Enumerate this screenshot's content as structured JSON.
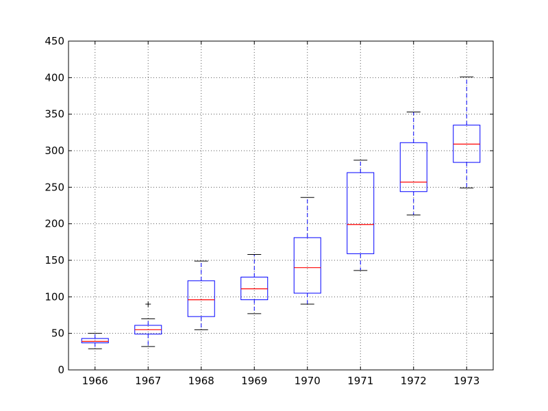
{
  "chart_data": {
    "type": "box",
    "title": "",
    "xlabel": "",
    "ylabel": "",
    "ylim": [
      0,
      450
    ],
    "yticks": [
      0,
      50,
      100,
      150,
      200,
      250,
      300,
      350,
      400,
      450
    ],
    "grid": true,
    "categories": [
      "1966",
      "1967",
      "1968",
      "1969",
      "1970",
      "1971",
      "1972",
      "1973"
    ],
    "boxes": [
      {
        "label": "1966",
        "whislo": 29,
        "q1": 37,
        "med": 39,
        "q3": 43,
        "whishi": 50,
        "fliers": []
      },
      {
        "label": "1967",
        "whislo": 32,
        "q1": 49,
        "med": 55,
        "q3": 61,
        "whishi": 70,
        "fliers": [
          90
        ]
      },
      {
        "label": "1968",
        "whislo": 55,
        "q1": 73,
        "med": 96,
        "q3": 122,
        "whishi": 149,
        "fliers": []
      },
      {
        "label": "1969",
        "whislo": 77,
        "q1": 96,
        "med": 111,
        "q3": 127,
        "whishi": 158,
        "fliers": []
      },
      {
        "label": "1970",
        "whislo": 90,
        "q1": 105,
        "med": 140,
        "q3": 181,
        "whishi": 236,
        "fliers": []
      },
      {
        "label": "1971",
        "whislo": 136,
        "q1": 159,
        "med": 199,
        "q3": 270,
        "whishi": 287,
        "fliers": []
      },
      {
        "label": "1972",
        "whislo": 212,
        "q1": 244,
        "med": 257,
        "q3": 311,
        "whishi": 353,
        "fliers": []
      },
      {
        "label": "1973",
        "whislo": 249,
        "q1": 284,
        "med": 309,
        "q3": 335,
        "whishi": 401,
        "fliers": []
      }
    ],
    "colors": {
      "box": "#0000ff",
      "median": "#ff0000",
      "whisker": "#0000ff",
      "cap": "#000000",
      "flier": "#000000",
      "grid": "#555555"
    }
  }
}
